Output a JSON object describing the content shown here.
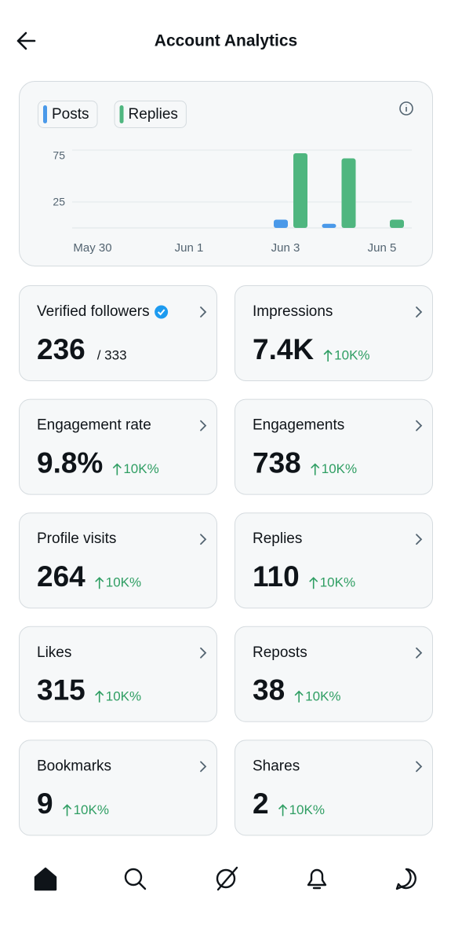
{
  "header": {
    "title": "Account Analytics"
  },
  "chart_data": {
    "type": "bar",
    "categories": [
      "May 30",
      null,
      "Jun 1",
      null,
      "Jun 3",
      null,
      "Jun 5"
    ],
    "series": [
      {
        "name": "Posts",
        "color": "#4a99e9",
        "values": [
          0,
          0,
          0,
          0,
          8,
          4,
          0
        ]
      },
      {
        "name": "Replies",
        "color": "#4fb67f",
        "values": [
          0,
          0,
          0,
          0,
          72,
          67,
          8
        ]
      }
    ],
    "ylim": [
      0,
      75
    ],
    "yticks": [
      25,
      75
    ],
    "grid": true
  },
  "metrics": [
    {
      "label": "Verified followers",
      "value": "236",
      "total": "/ 333",
      "verified": true
    },
    {
      "label": "Impressions",
      "value": "7.4K",
      "change": "10K%"
    },
    {
      "label": "Engagement rate",
      "value": "9.8%",
      "change": "10K%"
    },
    {
      "label": "Engagements",
      "value": "738",
      "change": "10K%"
    },
    {
      "label": "Profile visits",
      "value": "264",
      "change": "10K%"
    },
    {
      "label": "Replies",
      "value": "110",
      "change": "10K%"
    },
    {
      "label": "Likes",
      "value": "315",
      "change": "10K%"
    },
    {
      "label": "Reposts",
      "value": "38",
      "change": "10K%"
    },
    {
      "label": "Bookmarks",
      "value": "9",
      "change": "10K%"
    },
    {
      "label": "Shares",
      "value": "2",
      "change": "10K%"
    }
  ]
}
